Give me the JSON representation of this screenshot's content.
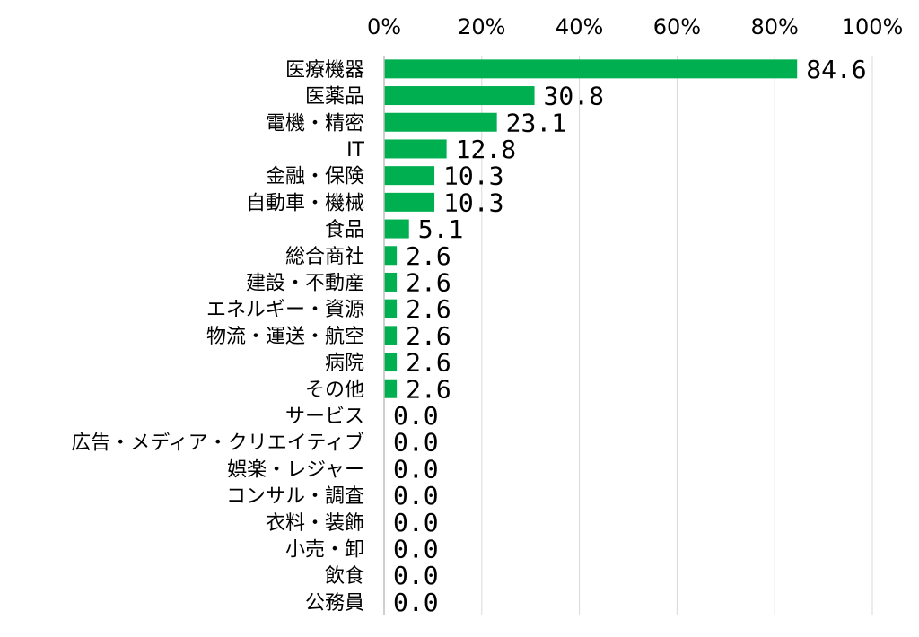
{
  "chart_data": {
    "type": "bar",
    "orientation": "horizontal",
    "title": "",
    "xlabel": "",
    "ylabel": "",
    "xlim": [
      0,
      100
    ],
    "x_ticks": [
      "0%",
      "20%",
      "40%",
      "60%",
      "80%",
      "100%"
    ],
    "x_axis_position": "top",
    "grid": true,
    "legend": "none",
    "bar_color": "#00b050",
    "categories": [
      "医療機器",
      "医薬品",
      "電機・精密",
      "IT",
      "金融・保険",
      "自動車・機械",
      "食品",
      "総合商社",
      "建設・不動産",
      "エネルギー・資源",
      "物流・運送・航空",
      "病院",
      "その他",
      "サービス",
      "広告・メディア・クリエイティブ",
      "娯楽・レジャー",
      "コンサル・調査",
      "衣料・装飾",
      "小売・卸",
      "飲食",
      "公務員"
    ],
    "values": [
      84.6,
      30.8,
      23.1,
      12.8,
      10.3,
      10.3,
      5.1,
      2.6,
      2.6,
      2.6,
      2.6,
      2.6,
      2.6,
      0.0,
      0.0,
      0.0,
      0.0,
      0.0,
      0.0,
      0.0,
      0.0
    ],
    "value_labels": [
      "84.6",
      "30.8",
      "23.1",
      "12.8",
      "10.3",
      "10.3",
      "5.1",
      "2.6",
      "2.6",
      "2.6",
      "2.6",
      "2.6",
      "2.6",
      "0.0",
      "0.0",
      "0.0",
      "0.0",
      "0.0",
      "0.0",
      "0.0",
      "0.0"
    ]
  }
}
